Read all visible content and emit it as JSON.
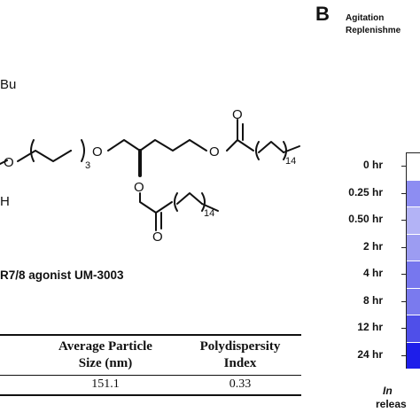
{
  "panel_b": {
    "letter": "B",
    "agitation_label": "Agitation",
    "replenishment_label": "Replenishme",
    "footer_italic": "In",
    "footer_line2": "releas"
  },
  "chemical_structure": {
    "labels": {
      "tbu_fragment": "Bu",
      "h_fragment": "H",
      "peg_subscript": "3",
      "chain_subscript_top": "14",
      "chain_subscript_bottom": "14",
      "o_left": "O",
      "o_ether": "O",
      "o_ester_top": "O",
      "o_carbonyl_top": "O",
      "o_ester_bottom": "O",
      "o_carbonyl_bottom": "O"
    },
    "caption": "R7/8 agonist UM-3003"
  },
  "table": {
    "col1_header_line1": "Average Particle",
    "col1_header_line2": "Size (nm)",
    "col2_header_line1": "Polydispersity",
    "col2_header_line2": "Index",
    "col1_value": "151.1",
    "col2_value": "0.33"
  },
  "chart_data": {
    "type": "heatmap",
    "rows": [
      "0 hr",
      "0.25 hr",
      "0.50 hr",
      "2 hr",
      "4 hr",
      "8 hr",
      "12 hr",
      "24 hr"
    ],
    "cell_colors": [
      "#ffffff",
      "#8d8df2",
      "#b3b3f6",
      "#9c9cf2",
      "#7777ee",
      "#7a7aee",
      "#4f4fe9",
      "#1e1eea"
    ]
  }
}
